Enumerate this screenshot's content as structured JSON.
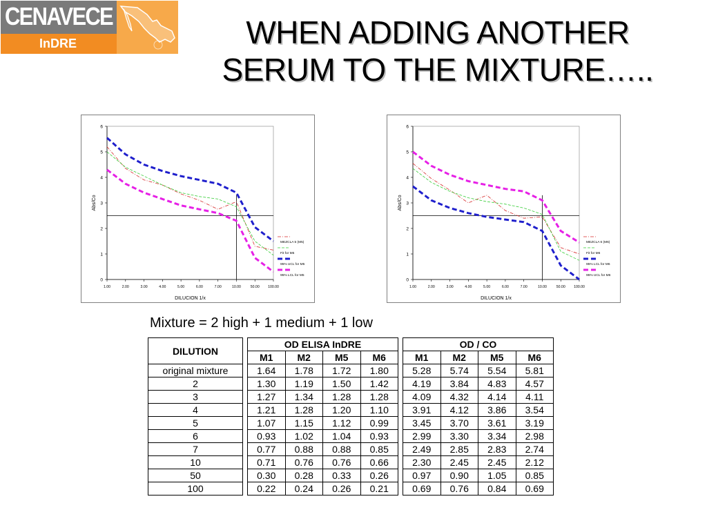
{
  "logo": {
    "name": "CENAVECE",
    "sub": "InDRE"
  },
  "title": {
    "line1": "WHEN ADDING ANOTHER",
    "line2": "SERUM TO THE MIXTURE….."
  },
  "subtitle": "Mixture = 2 high + 1 medium + 1 low",
  "chart_data": [
    {
      "type": "line",
      "ylabel": "Abs/Co",
      "xlabel": "DILUCION 1/x",
      "ylim": [
        0,
        6
      ],
      "y_ticks": [
        "0",
        "1",
        "2",
        "3",
        "4",
        "5",
        "6"
      ],
      "categories": [
        "1.00",
        "2.00",
        "3.00",
        "4.00",
        "5.00",
        "6.00",
        "7.00",
        "10.00",
        "50.00",
        "100.00"
      ],
      "cutoff_y": 2.5,
      "cutoff_x": "10.00",
      "series": [
        {
          "name": "MEZCLA 5 (M5)",
          "color": "#d62a2a",
          "style": "dashdot",
          "values": [
            5.2,
            4.35,
            3.9,
            3.7,
            3.35,
            3.1,
            2.75,
            3.05,
            1.3,
            1.15
          ]
        },
        {
          "name": "Fit for M5",
          "color": "#33cc33",
          "style": "dash",
          "values": [
            5.0,
            4.4,
            4.05,
            3.7,
            3.4,
            3.25,
            3.15,
            2.85,
            1.5,
            0.95
          ]
        },
        {
          "name": "95% UCL for M5",
          "color": "#1f1fcc",
          "style": "thickdash",
          "values": [
            5.55,
            4.9,
            4.5,
            4.25,
            4.05,
            3.9,
            3.75,
            3.4,
            2.05,
            1.5
          ]
        },
        {
          "name": "95% LCL for M5",
          "color": "#e620e6",
          "style": "thickdash",
          "values": [
            4.3,
            3.75,
            3.4,
            3.15,
            2.9,
            2.75,
            2.6,
            2.3,
            0.85,
            0.3
          ]
        }
      ]
    },
    {
      "type": "line",
      "ylabel": "Abs/Co",
      "xlabel": "DILUCION 1/x",
      "ylim": [
        0,
        6
      ],
      "y_ticks": [
        "0",
        "1",
        "2",
        "3",
        "4",
        "5",
        "6"
      ],
      "categories": [
        "1.00",
        "2.00",
        "3.00",
        "4.00",
        "5.00",
        "6.00",
        "7.00",
        "10.00",
        "50.00",
        "100.00"
      ],
      "cutoff_y": 2.5,
      "cutoff_x": "10.00",
      "series": [
        {
          "name": "MEZCLA 6 (M6)",
          "color": "#d62a2a",
          "style": "dashdot",
          "values": [
            4.55,
            3.95,
            3.5,
            3.0,
            3.3,
            2.7,
            2.4,
            2.45,
            1.25,
            1.0
          ]
        },
        {
          "name": "Fit for M6",
          "color": "#33cc33",
          "style": "dash",
          "values": [
            4.35,
            3.8,
            3.45,
            3.2,
            3.05,
            2.95,
            2.8,
            2.55,
            1.1,
            0.75
          ]
        },
        {
          "name": "95% LCL for M6",
          "color": "#1f1fcc",
          "style": "thickdash",
          "values": [
            3.65,
            3.1,
            2.8,
            2.6,
            2.45,
            2.35,
            2.25,
            1.9,
            0.55,
            0.0
          ]
        },
        {
          "name": "95% UCL for M6",
          "color": "#e620e6",
          "style": "thickdash",
          "values": [
            5.0,
            4.45,
            4.1,
            3.85,
            3.7,
            3.55,
            3.45,
            3.1,
            1.9,
            1.45
          ]
        }
      ]
    }
  ],
  "table": {
    "dilution_header": "DILUTION",
    "od_elisa_header": "OD ELISA InDRE",
    "od_co_header": "OD / CO",
    "columns": [
      "M1",
      "M2",
      "M5",
      "M6"
    ],
    "rows": [
      {
        "dilution": "original mixture",
        "od": [
          "1.64",
          "1.78",
          "1.72",
          "1.80"
        ],
        "odco": [
          "5.28",
          "5.74",
          "5.54",
          "5.81"
        ]
      },
      {
        "dilution": "2",
        "od": [
          "1.30",
          "1.19",
          "1.50",
          "1.42"
        ],
        "odco": [
          "4.19",
          "3.84",
          "4.83",
          "4.57"
        ]
      },
      {
        "dilution": "3",
        "od": [
          "1.27",
          "1.34",
          "1.28",
          "1.28"
        ],
        "odco": [
          "4.09",
          "4.32",
          "4.14",
          "4.11"
        ]
      },
      {
        "dilution": "4",
        "od": [
          "1.21",
          "1.28",
          "1.20",
          "1.10"
        ],
        "odco": [
          "3.91",
          "4.12",
          "3.86",
          "3.54"
        ]
      },
      {
        "dilution": "5",
        "od": [
          "1.07",
          "1.15",
          "1.12",
          "0.99"
        ],
        "odco": [
          "3.45",
          "3.70",
          "3.61",
          "3.19"
        ]
      },
      {
        "dilution": "6",
        "od": [
          "0.93",
          "1.02",
          "1.04",
          "0.93"
        ],
        "odco": [
          "2.99",
          "3.30",
          "3.34",
          "2.98"
        ]
      },
      {
        "dilution": "7",
        "od": [
          "0.77",
          "0.88",
          "0.88",
          "0.85"
        ],
        "odco": [
          "2.49",
          "2.85",
          "2.83",
          "2.74"
        ]
      },
      {
        "dilution": "10",
        "od": [
          "0.71",
          "0.76",
          "0.76",
          "0.66"
        ],
        "odco": [
          "2.30",
          "2.45",
          "2.45",
          "2.12"
        ]
      },
      {
        "dilution": "50",
        "od": [
          "0.30",
          "0.28",
          "0.33",
          "0.26"
        ],
        "odco": [
          "0.97",
          "0.90",
          "1.05",
          "0.85"
        ]
      },
      {
        "dilution": "100",
        "od": [
          "0.22",
          "0.24",
          "0.26",
          "0.21"
        ],
        "odco": [
          "0.69",
          "0.76",
          "0.84",
          "0.69"
        ]
      }
    ]
  }
}
